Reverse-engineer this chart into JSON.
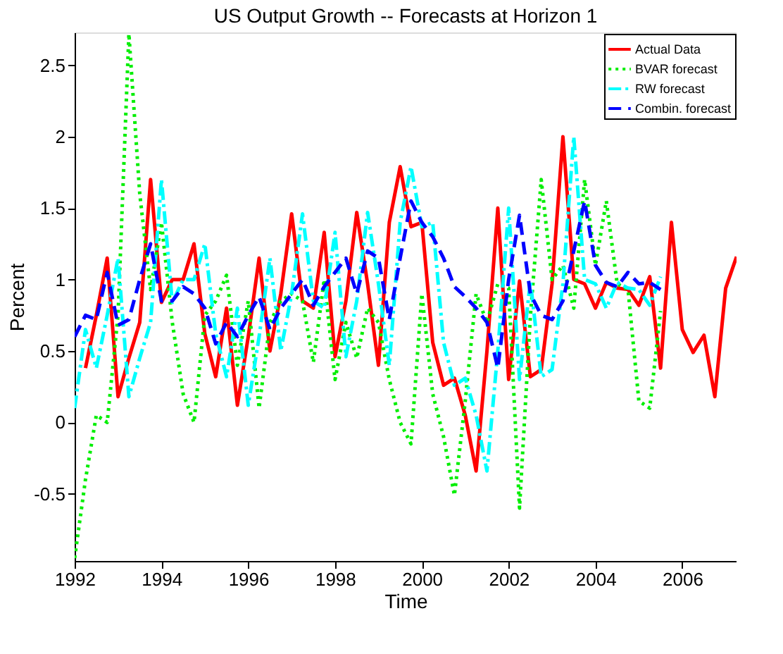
{
  "chart_data": {
    "type": "line",
    "title": "US Output Growth -- Forecasts at Horizon 1",
    "xlabel": "Time",
    "ylabel": "Percent",
    "x": [
      1992.0,
      1992.25,
      1992.5,
      1992.75,
      1993.0,
      1993.25,
      1993.5,
      1993.75,
      1994.0,
      1994.25,
      1994.5,
      1994.75,
      1995.0,
      1995.25,
      1995.5,
      1995.75,
      1996.0,
      1996.25,
      1996.5,
      1996.75,
      1997.0,
      1997.25,
      1997.5,
      1997.75,
      1998.0,
      1998.25,
      1998.5,
      1998.75,
      1999.0,
      1999.25,
      1999.5,
      1999.75,
      2000.0,
      2000.25,
      2000.5,
      2000.75,
      2001.0,
      2001.25,
      2001.5,
      2001.75,
      2002.0,
      2002.25,
      2002.5,
      2002.75,
      2003.0,
      2003.25,
      2003.5,
      2003.75,
      2004.0,
      2004.25,
      2004.5,
      2004.75,
      2005.0,
      2005.25,
      2005.5
    ],
    "series": [
      {
        "name": "Actual Data",
        "color": "#ff0000",
        "line_style": "solid",
        "x": [
          1992.25,
          1992.5,
          1992.75,
          1993.0,
          1993.25,
          1993.5,
          1993.75,
          1994.0,
          1994.25,
          1994.5,
          1994.75,
          1995.0,
          1995.25,
          1995.5,
          1995.75,
          1996.0,
          1996.25,
          1996.5,
          1996.75,
          1997.0,
          1997.25,
          1997.5,
          1997.75,
          1998.0,
          1998.25,
          1998.5,
          1998.75,
          1999.0,
          1999.25,
          1999.5,
          1999.75,
          2000.0,
          2000.25,
          2000.5,
          2000.75,
          2001.0,
          2001.25,
          2001.5,
          2001.75,
          2002.0,
          2002.25,
          2002.5,
          2002.75,
          2003.0,
          2003.25,
          2003.5,
          2003.75,
          2004.0,
          2004.25,
          2004.5,
          2004.75,
          2005.0,
          2005.25,
          2005.5,
          2005.75,
          2006.0,
          2006.25,
          2006.5,
          2006.75,
          2007.0,
          2007.25
        ],
        "values": [
          0.38,
          0.75,
          1.15,
          0.18,
          0.45,
          0.7,
          1.7,
          0.84,
          1.0,
          1.0,
          1.25,
          0.62,
          0.32,
          0.8,
          0.12,
          0.6,
          1.15,
          0.5,
          0.9,
          1.46,
          0.85,
          0.8,
          1.33,
          0.46,
          0.85,
          1.47,
          0.97,
          0.4,
          1.4,
          1.79,
          1.37,
          1.4,
          0.56,
          0.26,
          0.31,
          0.05,
          -0.34,
          0.5,
          1.5,
          0.3,
          0.99,
          0.32,
          0.37,
          0.97,
          2.0,
          1.0,
          0.97,
          0.8,
          0.98,
          0.94,
          0.93,
          0.82,
          1.02,
          0.38,
          1.4,
          0.65,
          0.49,
          0.61,
          0.18,
          0.94,
          1.16
        ]
      },
      {
        "name": "BVAR forecast",
        "color": "#00ee00",
        "line_style": "dotted",
        "values": [
          -0.95,
          -0.4,
          0.05,
          0.0,
          0.75,
          2.72,
          1.6,
          0.93,
          1.4,
          0.7,
          0.2,
          0.0,
          0.75,
          0.85,
          1.03,
          0.4,
          0.85,
          0.1,
          0.7,
          0.85,
          0.9,
          0.85,
          0.42,
          1.0,
          0.3,
          0.7,
          0.45,
          0.8,
          0.7,
          0.3,
          0.0,
          -0.15,
          0.9,
          0.2,
          -0.1,
          -0.51,
          0.15,
          0.9,
          0.7,
          0.97,
          0.94,
          -0.6,
          0.74,
          1.7,
          1.0,
          1.1,
          0.8,
          1.7,
          1.1,
          1.55,
          0.97,
          0.93,
          0.15,
          0.1,
          0.78
        ]
      },
      {
        "name": "RW forecast",
        "color": "#00ffff",
        "line_style": "dashdot",
        "values": [
          0.1,
          0.65,
          0.38,
          0.75,
          1.15,
          0.18,
          0.45,
          0.7,
          1.7,
          0.84,
          1.0,
          1.0,
          1.25,
          0.62,
          0.32,
          0.8,
          0.12,
          0.6,
          1.15,
          0.5,
          0.9,
          1.46,
          0.85,
          0.8,
          1.33,
          0.46,
          0.85,
          1.47,
          0.97,
          0.4,
          1.4,
          1.79,
          1.37,
          1.4,
          0.56,
          0.26,
          0.31,
          0.05,
          -0.34,
          0.5,
          1.5,
          0.3,
          0.99,
          0.32,
          0.37,
          0.97,
          2.0,
          1.0,
          0.97,
          0.8,
          0.98,
          0.94,
          0.93,
          0.82,
          1.02
        ]
      },
      {
        "name": "Combin. forecast",
        "color": "#0000ff",
        "line_style": "dashed",
        "values": [
          0.6,
          0.75,
          0.72,
          1.05,
          0.68,
          0.72,
          1.0,
          1.25,
          0.85,
          0.85,
          0.95,
          0.9,
          0.8,
          0.55,
          0.7,
          0.6,
          0.75,
          0.88,
          0.65,
          0.8,
          0.9,
          1.0,
          0.82,
          0.95,
          1.05,
          1.15,
          0.9,
          1.2,
          1.15,
          0.72,
          1.15,
          1.55,
          1.4,
          1.3,
          1.15,
          0.95,
          0.88,
          0.8,
          0.7,
          0.38,
          1.0,
          1.45,
          0.9,
          0.75,
          0.72,
          0.85,
          1.2,
          1.55,
          1.1,
          0.98,
          0.95,
          1.05,
          0.97,
          0.98,
          0.93
        ]
      }
    ],
    "xlim": [
      1992,
      2007.25
    ],
    "xticks": [
      1992,
      1994,
      1996,
      1998,
      2000,
      2002,
      2004,
      2006
    ],
    "ylim": [
      -0.97,
      2.73
    ],
    "yticks": [
      -0.5,
      0,
      0.5,
      1,
      1.5,
      2,
      2.5
    ],
    "grid": false,
    "legend": "top right"
  }
}
